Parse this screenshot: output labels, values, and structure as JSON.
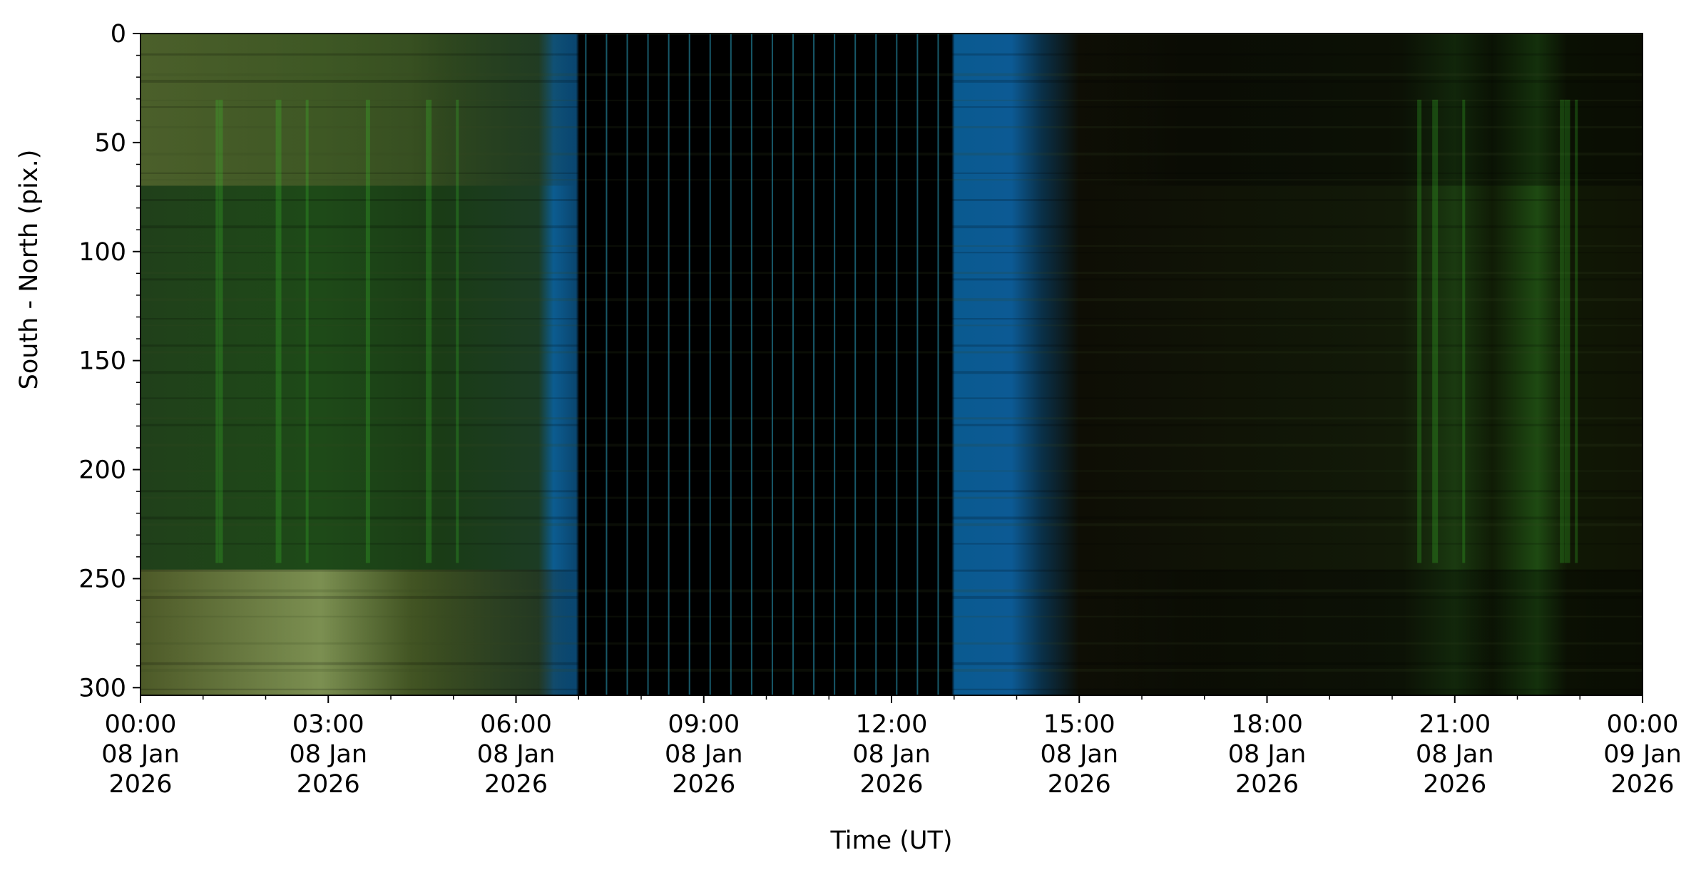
{
  "chart_data": {
    "type": "image",
    "xlabel": "Time (UT)",
    "ylabel": "South - North (pix.)",
    "xlim": [
      "2026-01-08T00:00",
      "2026-01-09T00:00"
    ],
    "xticks": [
      {
        "value": "2026-01-08T00:00",
        "label": "00:00\n08 Jan\n2026"
      },
      {
        "value": "2026-01-08T03:00",
        "label": "03:00\n08 Jan\n2026"
      },
      {
        "value": "2026-01-08T06:00",
        "label": "06:00\n08 Jan\n2026"
      },
      {
        "value": "2026-01-08T09:00",
        "label": "09:00\n08 Jan\n2026"
      },
      {
        "value": "2026-01-08T12:00",
        "label": "12:00\n08 Jan\n2026"
      },
      {
        "value": "2026-01-08T15:00",
        "label": "15:00\n08 Jan\n2026"
      },
      {
        "value": "2026-01-08T18:00",
        "label": "18:00\n08 Jan\n2026"
      },
      {
        "value": "2026-01-08T21:00",
        "label": "21:00\n08 Jan\n2026"
      },
      {
        "value": "2026-01-09T00:00",
        "label": "00:00\n09 Jan\n2026"
      }
    ],
    "ylim": [
      303.5,
      0
    ],
    "yticks": [
      0,
      50,
      100,
      150,
      200,
      250,
      300
    ]
  }
}
